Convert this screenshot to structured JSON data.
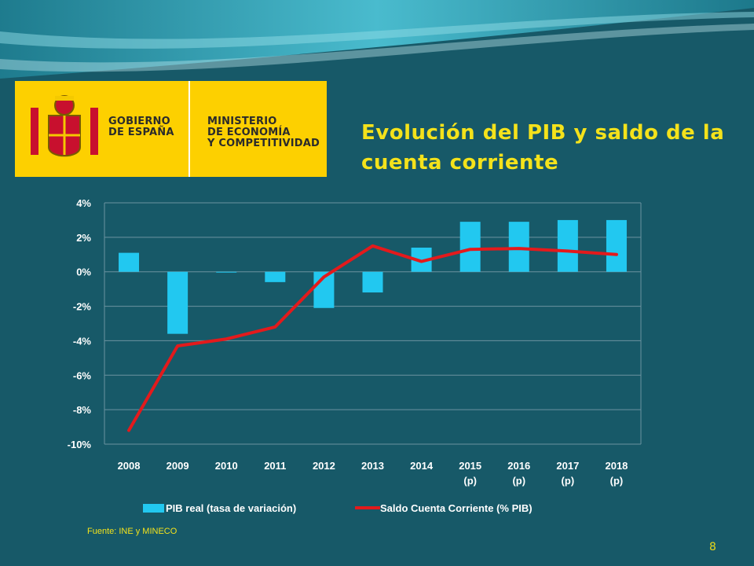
{
  "logo": {
    "gov_text": "GOBIERNO\nDE ESPAÑA",
    "ministry_text": "MINISTERIO\nDE ECONOMÍA\nY COMPETITIVIDAD"
  },
  "title": "Evolución del PIB y saldo de la cuenta corriente",
  "source": "Fuente: INE y MINECO",
  "page_number": "8",
  "colors": {
    "background": "#175968",
    "bar": "#22c8f0",
    "line": "#e31a1c",
    "title": "#f4e21b",
    "logo_yellow": "#fdd000"
  },
  "chart_data": {
    "type": "bar+line",
    "categories": [
      "2008",
      "2009",
      "2010",
      "2011",
      "2012",
      "2013",
      "2014",
      "2015\n(p)",
      "2016\n(p)",
      "2017\n(p)",
      "2018\n(p)"
    ],
    "series": [
      {
        "name": "PIB real (tasa de variación)",
        "type": "bar",
        "values": [
          1.1,
          -3.6,
          0.0,
          -0.6,
          -2.1,
          -1.2,
          1.4,
          2.9,
          2.9,
          3.0,
          3.0
        ]
      },
      {
        "name": "Saldo Cuenta Corriente (% PIB)",
        "type": "line",
        "values": [
          -9.2,
          -4.3,
          -3.9,
          -3.2,
          -0.3,
          1.5,
          0.6,
          1.3,
          1.35,
          1.2,
          1.0
        ]
      }
    ],
    "y_ticks": [
      "4%",
      "2%",
      "0%",
      "-2%",
      "-4%",
      "-6%",
      "-8%",
      "-10%"
    ],
    "ylim": [
      -10,
      4
    ],
    "grid": true,
    "legend_position": "bottom"
  }
}
